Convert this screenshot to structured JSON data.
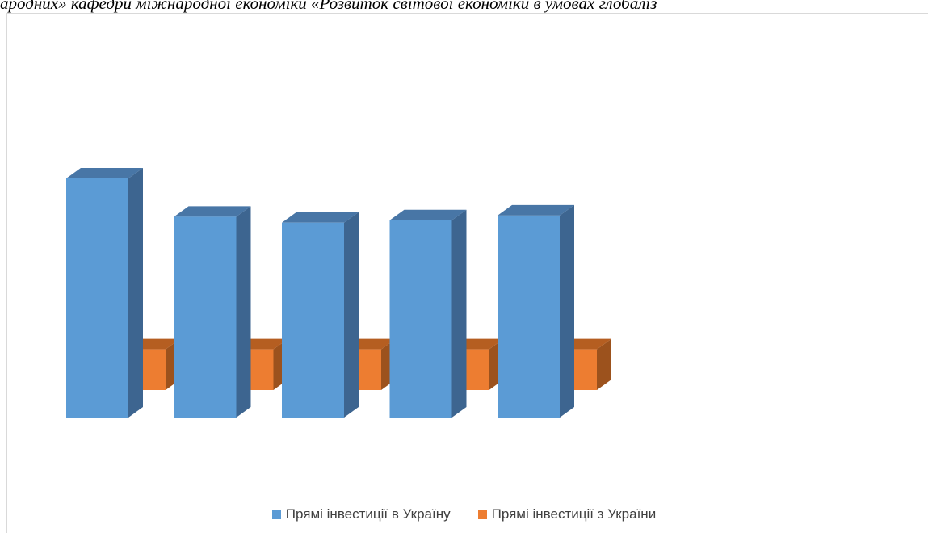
{
  "header": {
    "text": "ародних» кафедри міжнародної економіки «Розвиток світової економіки в умовах глобаліз"
  },
  "chart_data": {
    "type": "bar",
    "categories": [
      "",
      "",
      "",
      "",
      ""
    ],
    "series": [
      {
        "name": "Прямі інвестиції в Україну",
        "values": [
          100,
          84,
          81.5,
          82.5,
          84.5
        ]
      },
      {
        "name": "Прямі інвестиції з України",
        "values": [
          17,
          17,
          17,
          17,
          17
        ]
      }
    ],
    "title": "",
    "xlabel": "",
    "ylabel": "",
    "grid": false,
    "legend_position": "bottom",
    "three_d": true
  },
  "colors": {
    "series1_front": "#5b9bd5",
    "series1_side": "#3d6590",
    "series1_top": "#4876a6",
    "series2_front": "#ed7d31",
    "series2_side": "#9c521d",
    "series2_top": "#b55e21"
  }
}
